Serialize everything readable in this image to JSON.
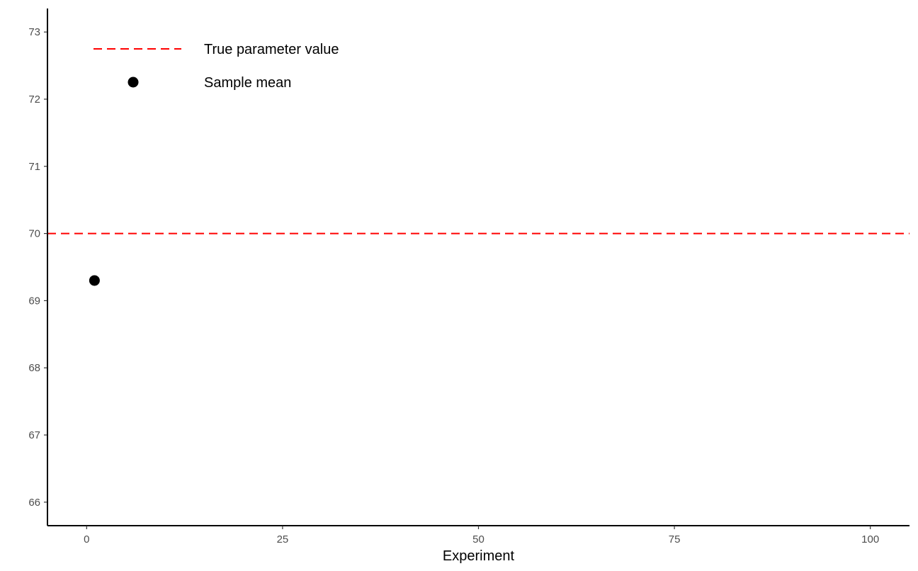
{
  "chart_data": {
    "type": "scatter",
    "title": "",
    "xlabel": "Experiment",
    "ylabel": "",
    "xlim": [
      -5,
      105
    ],
    "ylim": [
      65.65,
      73.35
    ],
    "x_ticks": [
      0,
      25,
      50,
      75,
      100
    ],
    "y_ticks": [
      66,
      67,
      68,
      69,
      70,
      71,
      72,
      73
    ],
    "grid": false,
    "legend_position": "top-left",
    "series": [
      {
        "name": "Sample mean",
        "kind": "points",
        "color": "#000000",
        "points": [
          {
            "x": 1,
            "y": 69.3
          }
        ]
      }
    ],
    "reference_lines": [
      {
        "name": "True parameter value",
        "orientation": "horizontal",
        "y": 70,
        "style": "dashed",
        "color": "#ff0000"
      }
    ],
    "legend": [
      {
        "label": "True parameter value",
        "symbol": "dashed-line",
        "color": "#ff0000"
      },
      {
        "label": "Sample mean",
        "symbol": "point",
        "color": "#000000"
      }
    ]
  }
}
